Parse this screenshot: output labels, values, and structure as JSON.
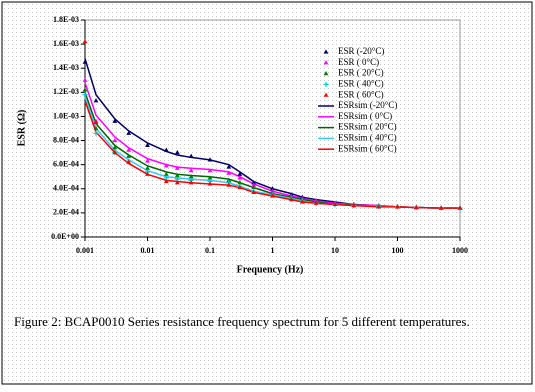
{
  "chart_data": {
    "type": "scatter",
    "xlabel": "Frequency (Hz)",
    "ylabel": "ESR (Ω)",
    "xscale": "log",
    "xlim": [
      0.001,
      1000
    ],
    "xticks": [
      0.001,
      0.01,
      0.1,
      1,
      10,
      100,
      1000
    ],
    "ylim": [
      0,
      0.0018
    ],
    "yticks": [
      {
        "value": 0,
        "label": "0.0E+00"
      },
      {
        "value": 0.0002,
        "label": "2.0E-04"
      },
      {
        "value": 0.0004,
        "label": "4.0E-04"
      },
      {
        "value": 0.0006,
        "label": "6.0E-04"
      },
      {
        "value": 0.0008,
        "label": "8.0E-04"
      },
      {
        "value": 0.001,
        "label": "1.0E-03"
      },
      {
        "value": 0.0012,
        "label": "1.2E-03"
      },
      {
        "value": 0.0014,
        "label": "1.4E-03"
      },
      {
        "value": 0.0016,
        "label": "1.6E-03"
      },
      {
        "value": 0.0018,
        "label": "1.8E-03"
      }
    ],
    "grid": false,
    "legend": "upper right",
    "x": [
      0.001,
      0.0015,
      0.003,
      0.005,
      0.01,
      0.02,
      0.03,
      0.05,
      0.1,
      0.2,
      0.3,
      0.5,
      1,
      2,
      3,
      5,
      10,
      20,
      50,
      100,
      200,
      500,
      1000
    ],
    "series": [
      {
        "name": "ESR (-20°C)",
        "color": "#000066",
        "style": "markers",
        "marker": "triangle",
        "values": [
          0.00145,
          0.00113,
          0.00096,
          0.00086,
          0.00076,
          0.00072,
          0.0007,
          0.00067,
          0.00064,
          0.00058,
          0.00052,
          0.00045,
          0.0004,
          0.00035,
          0.00033,
          0.0003,
          0.00028,
          0.00027,
          0.00026,
          0.00025,
          0.000245,
          0.00024,
          0.00024
        ]
      },
      {
        "name": "ESR ( 0°C)",
        "color": "#ff00ff",
        "style": "markers",
        "marker": "triangle",
        "values": [
          0.0013,
          0.00096,
          0.0008,
          0.00072,
          0.00063,
          0.00059,
          0.00057,
          0.00055,
          0.00055,
          0.00053,
          0.00049,
          0.00043,
          0.00038,
          0.00034,
          0.00032,
          0.0003,
          0.00028,
          0.00027,
          0.00026,
          0.00025,
          0.000245,
          0.00024,
          0.00024
        ]
      },
      {
        "name": "ESR ( 20°C)",
        "color": "#008000",
        "style": "markers",
        "marker": "triangle",
        "values": [
          0.00122,
          0.0009,
          0.00074,
          0.00067,
          0.00057,
          0.00052,
          0.00051,
          0.0005,
          0.00049,
          0.00047,
          0.00045,
          0.00041,
          0.00036,
          0.00033,
          0.00031,
          0.00029,
          0.00027,
          0.000265,
          0.000255,
          0.00025,
          0.000245,
          0.00024,
          0.00024
        ]
      },
      {
        "name": "ESR ( 40°C)",
        "color": "#00cccc",
        "style": "markers",
        "marker": "plus",
        "values": [
          0.00118,
          0.00086,
          0.0007,
          0.00063,
          0.00054,
          0.00049,
          0.00048,
          0.00047,
          0.00046,
          0.00045,
          0.00042,
          0.00038,
          0.00035,
          0.00032,
          0.0003,
          0.00028,
          0.00027,
          0.00026,
          0.000255,
          0.00025,
          0.000245,
          0.00024,
          0.00024
        ]
      },
      {
        "name": "ESR ( 60°C)",
        "color": "#ff0000",
        "style": "markers",
        "marker": "triangle",
        "values": [
          0.00162,
          0.00095,
          0.0007,
          0.00062,
          0.00052,
          0.00046,
          0.00045,
          0.00045,
          0.00044,
          0.00043,
          0.00041,
          0.00037,
          0.00034,
          0.00031,
          0.00029,
          0.00028,
          0.00027,
          0.00026,
          0.00025,
          0.00025,
          0.000245,
          0.00024,
          0.00024
        ]
      },
      {
        "name": "ESRsim (-20°C)",
        "color": "#000066",
        "style": "line",
        "values": [
          0.00148,
          0.00118,
          0.00098,
          0.00088,
          0.00078,
          0.00071,
          0.00068,
          0.00066,
          0.00064,
          0.0006,
          0.00054,
          0.00046,
          0.0004,
          0.00036,
          0.00033,
          0.00031,
          0.00029,
          0.00027,
          0.00026,
          0.00025,
          0.000245,
          0.00024,
          0.00024
        ]
      },
      {
        "name": "ESRsim ( 0°C)",
        "color": "#ff00ff",
        "style": "line",
        "values": [
          0.00128,
          0.00101,
          0.00083,
          0.00074,
          0.00065,
          0.0006,
          0.00058,
          0.00057,
          0.00056,
          0.00054,
          0.0005,
          0.00044,
          0.00038,
          0.00034,
          0.00032,
          0.0003,
          0.00028,
          0.00027,
          0.00026,
          0.00025,
          0.000245,
          0.00024,
          0.00024
        ]
      },
      {
        "name": "ESRsim ( 20°C)",
        "color": "#006600",
        "style": "line",
        "values": [
          0.0012,
          0.00094,
          0.00076,
          0.00068,
          0.00059,
          0.00054,
          0.00052,
          0.00051,
          0.0005,
          0.00048,
          0.00045,
          0.00041,
          0.00036,
          0.00033,
          0.00031,
          0.00029,
          0.00027,
          0.000265,
          0.000255,
          0.00025,
          0.000245,
          0.00024,
          0.00024
        ]
      },
      {
        "name": "ESRsim ( 40°C)",
        "color": "#33ccff",
        "style": "line",
        "values": [
          0.00116,
          0.0009,
          0.00072,
          0.00064,
          0.00055,
          0.0005,
          0.00049,
          0.00048,
          0.00047,
          0.00045,
          0.00042,
          0.00038,
          0.00035,
          0.00032,
          0.0003,
          0.00028,
          0.00027,
          0.00026,
          0.000255,
          0.00025,
          0.000245,
          0.00024,
          0.00024
        ]
      },
      {
        "name": "ESRsim ( 60°C)",
        "color": "#ff0000",
        "style": "line",
        "values": [
          0.00113,
          0.00087,
          0.0007,
          0.00061,
          0.00052,
          0.00047,
          0.00046,
          0.00045,
          0.00044,
          0.00043,
          0.00041,
          0.00037,
          0.00034,
          0.00031,
          0.00029,
          0.00028,
          0.00027,
          0.00026,
          0.00025,
          0.00025,
          0.000245,
          0.00024,
          0.00024
        ]
      }
    ],
    "caption": "Figure 2: BCAP0010 Series resistance frequency spectrum for 5 different temperatures."
  }
}
